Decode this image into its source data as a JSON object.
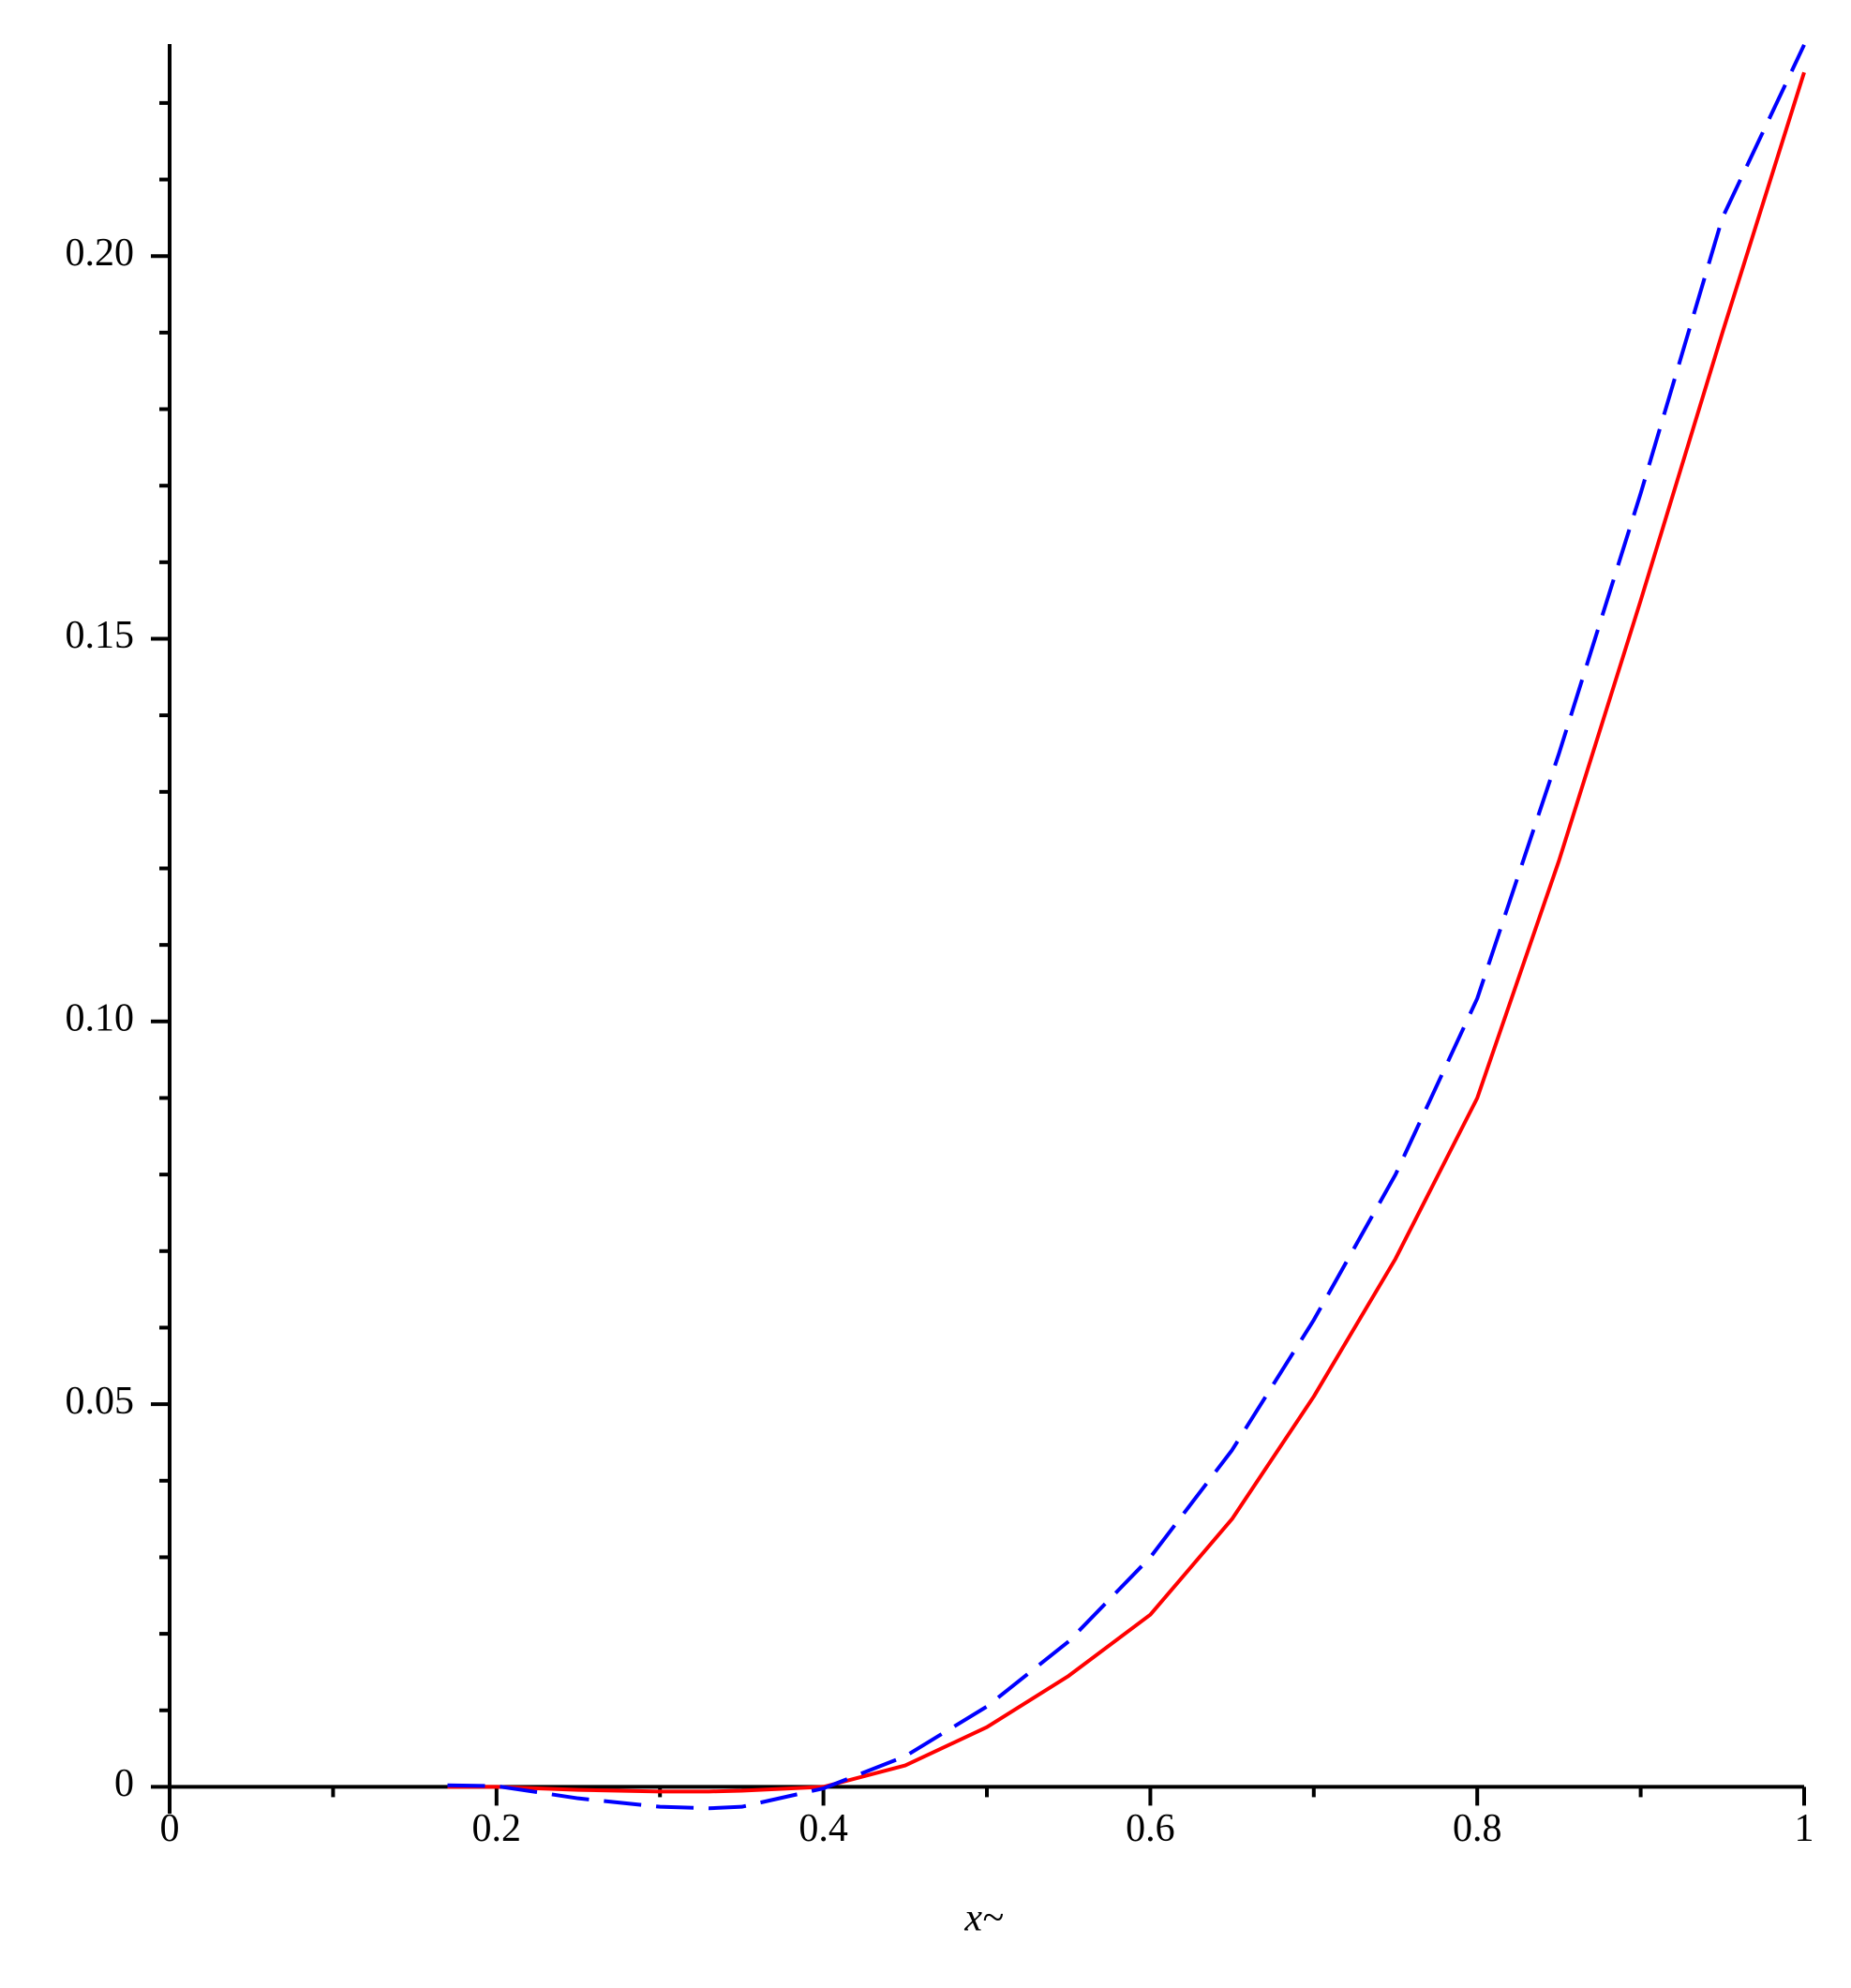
{
  "chart_data": {
    "type": "line",
    "xlabel": "x~",
    "x": [
      0.17,
      0.2,
      0.25,
      0.3,
      0.33,
      0.35,
      0.4,
      0.45,
      0.5,
      0.55,
      0.6,
      0.65,
      0.7,
      0.75,
      0.8,
      0.85,
      0.9,
      0.95,
      1
    ],
    "series": [
      {
        "color": "#ff0000",
        "dashed": false,
        "values": [
          0,
          0,
          -0.0004,
          -0.0006,
          -0.0006,
          -0.0005,
          0,
          0.0028,
          0.0078,
          0.0145,
          0.0225,
          0.035,
          0.051,
          0.069,
          0.09,
          0.121,
          0.155,
          0.19,
          0.224
        ]
      },
      {
        "color": "#0000ff",
        "dashed": true,
        "values": [
          0.0002,
          0.0001,
          -0.0015,
          -0.0026,
          -0.0028,
          -0.0026,
          -0.0002,
          0.004,
          0.0105,
          0.019,
          0.03,
          0.044,
          0.061,
          0.08,
          0.103,
          0.135,
          0.169,
          0.205,
          0.2276
        ]
      }
    ],
    "xlim": [
      0,
      1
    ],
    "ylim": [
      -0.0035,
      0.2277
    ],
    "xticks": [
      0,
      0.2,
      0.4,
      0.6,
      0.8,
      1
    ],
    "xminorticks": [
      0.1,
      0.3,
      0.5,
      0.7,
      0.9
    ],
    "yticks": [
      0,
      0.05,
      {
        "value": 0.1,
        "label": "0.10"
      },
      0.15,
      {
        "value": 0.2,
        "label": "0.20"
      }
    ],
    "yminorticks": [
      0.01,
      0.02,
      0.03,
      0.04,
      0.06,
      0.07,
      0.08,
      0.09,
      0.11,
      0.12,
      0.13,
      0.14,
      0.16,
      0.17,
      0.18,
      0.19,
      0.21,
      0.22
    ]
  }
}
